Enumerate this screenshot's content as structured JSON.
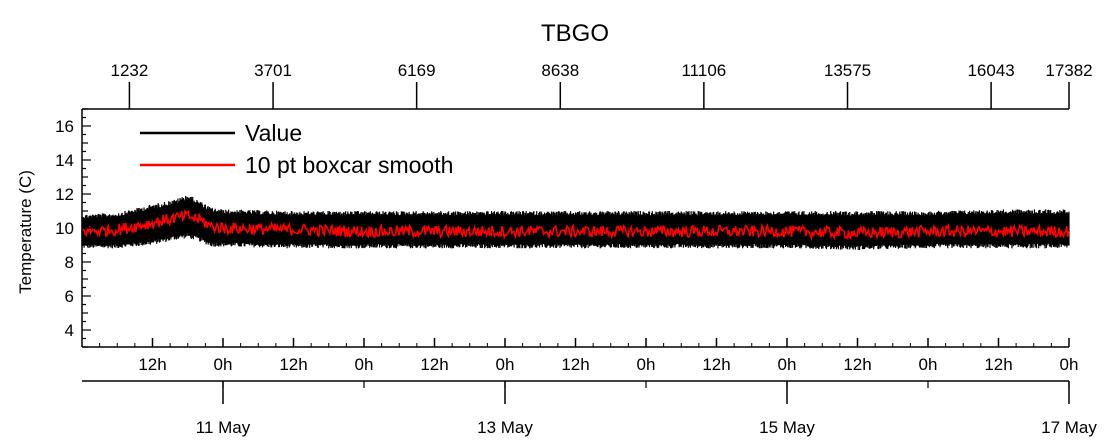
{
  "chart_data": {
    "type": "line",
    "title": "TBGO",
    "ylabel": "Temperature (C)",
    "ylim": [
      3,
      17
    ],
    "y_ticks": [
      4,
      6,
      8,
      10,
      12,
      14,
      16
    ],
    "top_axis": {
      "range": [
        417,
        17382
      ],
      "ticks": [
        "1232",
        "3701",
        "6169",
        "8638",
        "11106",
        "13575",
        "16043",
        "17382"
      ]
    },
    "bottom_axis": {
      "range_hours": [
        0,
        168
      ],
      "hour_ticks": [
        {
          "h": 12,
          "label": "12h"
        },
        {
          "h": 24,
          "label": "0h"
        },
        {
          "h": 36,
          "label": "12h"
        },
        {
          "h": 48,
          "label": "0h"
        },
        {
          "h": 60,
          "label": "12h"
        },
        {
          "h": 72,
          "label": "0h"
        },
        {
          "h": 84,
          "label": "12h"
        },
        {
          "h": 96,
          "label": "0h"
        },
        {
          "h": 108,
          "label": "12h"
        },
        {
          "h": 120,
          "label": "0h"
        },
        {
          "h": 132,
          "label": "12h"
        },
        {
          "h": 144,
          "label": "0h"
        },
        {
          "h": 156,
          "label": "12h"
        },
        {
          "h": 168,
          "label": "0h"
        }
      ],
      "date_ticks": [
        {
          "h": 24,
          "label": "11 May"
        },
        {
          "h": 72,
          "label": "13 May"
        },
        {
          "h": 120,
          "label": "15 May"
        },
        {
          "h": 168,
          "label": "17 May"
        }
      ]
    },
    "legend": {
      "position": "top-left",
      "entries": [
        {
          "label": "Value",
          "color": "#000000"
        },
        {
          "label": "10 pt boxcar smooth",
          "color": "#ff0000"
        }
      ]
    },
    "series": [
      {
        "name": "Value",
        "color": "#000000",
        "x_hours": [
          0,
          6,
          12,
          16,
          18,
          20,
          22,
          24,
          36,
          48,
          60,
          72,
          84,
          96,
          108,
          120,
          132,
          144,
          156,
          168
        ],
        "y_min": [
          8.8,
          8.8,
          9.0,
          9.3,
          9.4,
          9.2,
          8.9,
          8.9,
          8.8,
          8.8,
          8.8,
          8.8,
          8.8,
          8.8,
          8.8,
          8.8,
          8.7,
          8.8,
          8.8,
          8.8
        ],
        "y_max": [
          10.8,
          10.9,
          11.4,
          11.7,
          12.0,
          11.6,
          11.2,
          11.1,
          11.0,
          11.0,
          11.0,
          11.0,
          11.0,
          11.0,
          11.0,
          11.0,
          11.0,
          11.0,
          11.1,
          11.1
        ]
      },
      {
        "name": "10 pt boxcar smooth",
        "color": "#ff0000",
        "x_hours": [
          0,
          6,
          12,
          16,
          18,
          20,
          22,
          24,
          36,
          48,
          60,
          72,
          84,
          96,
          108,
          120,
          132,
          144,
          156,
          168
        ],
        "y_mean": [
          9.8,
          9.9,
          10.3,
          10.6,
          10.7,
          10.5,
          10.1,
          10.0,
          9.9,
          9.8,
          9.8,
          9.8,
          9.8,
          9.8,
          9.8,
          9.8,
          9.7,
          9.8,
          9.8,
          9.8
        ]
      }
    ]
  }
}
